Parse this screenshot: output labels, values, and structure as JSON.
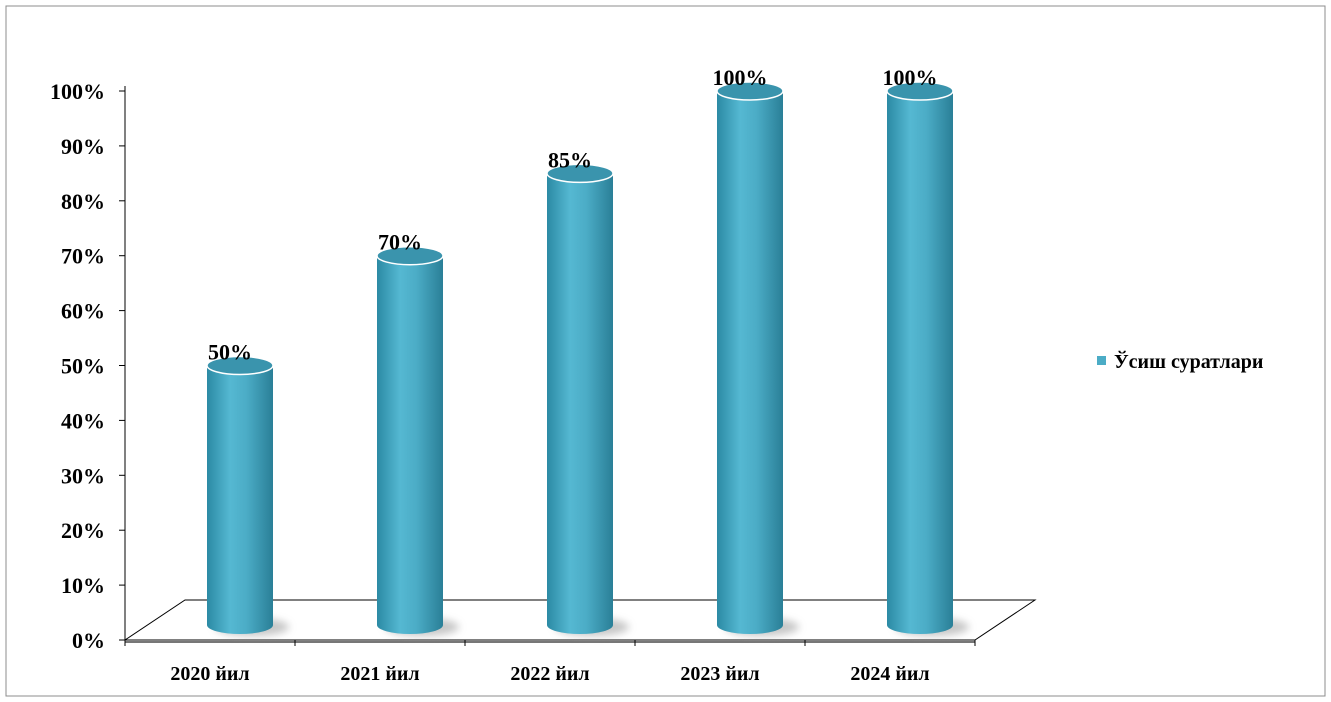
{
  "chart_data": {
    "type": "bar",
    "categories": [
      "2020 йил",
      "2021 йил",
      "2022 йил",
      "2023 йил",
      "2024 йил"
    ],
    "series": [
      {
        "name": "Ўсиш суратлари",
        "values": [
          50,
          70,
          85,
          100,
          100
        ]
      }
    ],
    "data_labels": [
      "50%",
      "70%",
      "85%",
      "100%",
      "100%"
    ],
    "ylim": [
      0,
      100
    ],
    "yticks": [
      0,
      10,
      20,
      30,
      40,
      50,
      60,
      70,
      80,
      90,
      100
    ],
    "ytick_labels": [
      "0%",
      "10%",
      "20%",
      "30%",
      "40%",
      "50%",
      "60%",
      "70%",
      "80%",
      "90%",
      "100%"
    ],
    "grid": false,
    "legend_position": "right",
    "bar_shape": "3d-cylinder",
    "colors": {
      "bar": "#4bacc6",
      "bar_dark": "#2e8aa3",
      "bar_top": "#3a94ad",
      "legend_marker": "#4bacc6",
      "floor_line": "#000000"
    }
  }
}
